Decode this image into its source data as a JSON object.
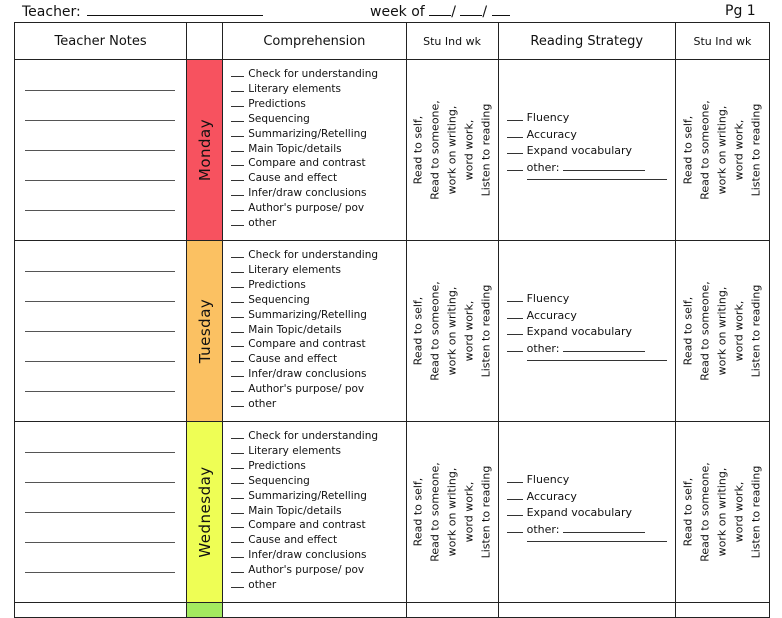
{
  "header": {
    "teacher_label": "Teacher:",
    "week_label": "week of",
    "week_sep": "/",
    "page_label": "Pg 1"
  },
  "columns": {
    "notes": "Teacher Notes",
    "comprehension": "Comprehension",
    "stu_ind_wk": "Stu Ind wk",
    "reading_strategy": "Reading Strategy",
    "stu_ind_wk_2": "Stu Ind wk"
  },
  "days": [
    {
      "name": "Monday",
      "color": "#f7525f"
    },
    {
      "name": "Tuesday",
      "color": "#fbc162"
    },
    {
      "name": "Wednesday",
      "color": "#eefe55"
    }
  ],
  "next_day_color": "#a3ea5f",
  "comprehension_items": [
    "Check for understanding",
    "Literary elements",
    "Predictions",
    "Sequencing",
    "Summarizing/Retelling",
    "Main Topic/details",
    "Compare and contrast",
    "Cause and effect",
    "Infer/draw conclusions",
    "Author's purpose/ pov",
    "other"
  ],
  "stu_work_lines": [
    "Read to self,",
    "Read to someone,",
    "work on writing,",
    "word work,",
    "Listen to reading"
  ],
  "strategy_items": [
    "Fluency",
    "Accuracy",
    "Expand vocabulary",
    "other:"
  ]
}
